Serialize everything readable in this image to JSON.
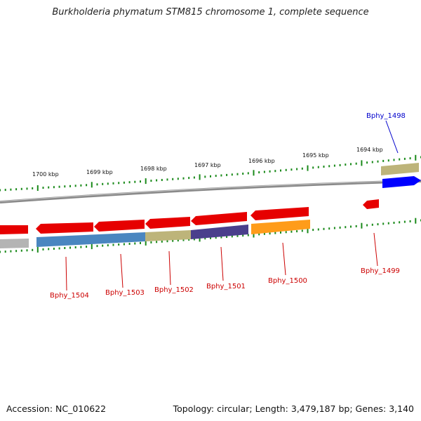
{
  "title": "Burkholderia phymatum STM815 chromosome 1, complete sequence",
  "footer": {
    "accession": "Accession: NC_010622",
    "topology": "Topology: circular; Length: 3,479,187 bp; Genes: 3,140"
  },
  "ticks": [
    "1700 kbp",
    "1699 kbp",
    "1698 kbp",
    "1697 kbp",
    "1696 kbp",
    "1695 kbp",
    "1694 kbp"
  ],
  "colors": {
    "backbone": "#8a8a8a",
    "tick": "#1a8a1a",
    "gene_forward": "#e60000",
    "gene_plus_strand": "#0000ff",
    "label_red": "#cc0000",
    "label_blue": "#0000cc",
    "cog_gray": "#b4b4b4",
    "cog_steelblue": "#4a86c0",
    "cog_khaki": "#bdb47a",
    "cog_purple": "#4a3f8c",
    "cog_orange": "#ff9c1a"
  },
  "genes": [
    {
      "name": "Bphy_1504",
      "strand": "-",
      "cog_color": "cog_steelblue"
    },
    {
      "name": "Bphy_1503",
      "strand": "-",
      "cog_color": "cog_steelblue"
    },
    {
      "name": "Bphy_1502",
      "strand": "-",
      "cog_color": "cog_khaki"
    },
    {
      "name": "Bphy_1501",
      "strand": "-",
      "cog_color": "cog_purple"
    },
    {
      "name": "Bphy_1500",
      "strand": "-",
      "cog_color": "cog_orange"
    },
    {
      "name": "Bphy_1499",
      "strand": "-",
      "cog_color": ""
    },
    {
      "name": "Bphy_1498",
      "strand": "+",
      "cog_color": "cog_khaki"
    }
  ]
}
